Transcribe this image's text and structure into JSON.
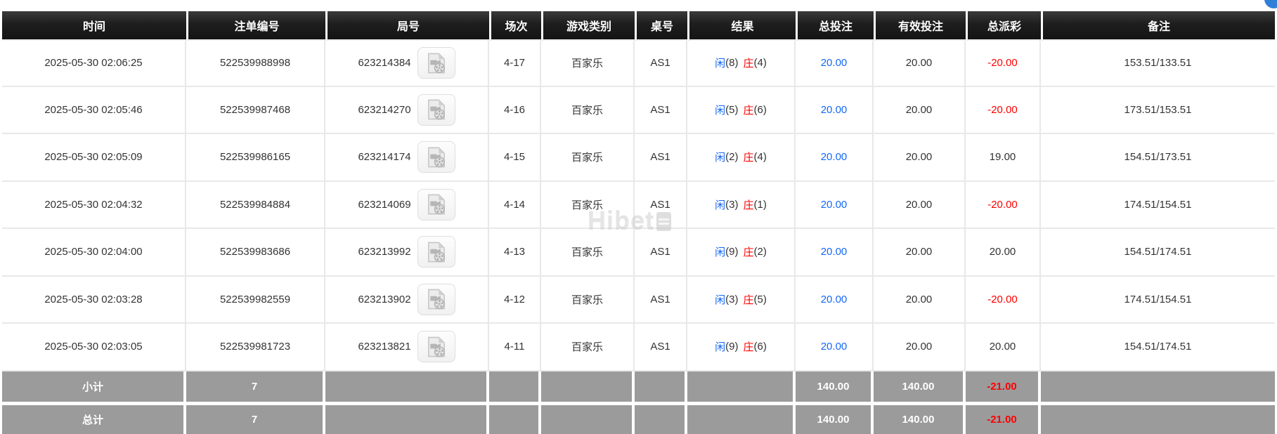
{
  "colors": {
    "header_black": "#1e1e1e",
    "accent_blue": "#1468fa",
    "negative_red": "#fe0000",
    "footer_gray": "#9b9b9b",
    "row_separator": "#e8e8e8"
  },
  "watermark": {
    "text": "Hibet"
  },
  "corner_widget": {
    "icon": "blue-circle-fragment"
  },
  "table": {
    "video_icon": "video-replay-icon",
    "columns": [
      {
        "key": "time",
        "label": "时间"
      },
      {
        "key": "bet-no",
        "label": "注单编号"
      },
      {
        "key": "round-no",
        "label": "局号"
      },
      {
        "key": "session",
        "label": "场次"
      },
      {
        "key": "game-type",
        "label": "游戏类别"
      },
      {
        "key": "table-no",
        "label": "桌号"
      },
      {
        "key": "result",
        "label": "结果"
      },
      {
        "key": "total-bet",
        "label": "总投注"
      },
      {
        "key": "valid-bet",
        "label": "有效投注"
      },
      {
        "key": "payout",
        "label": "总派彩"
      },
      {
        "key": "remark",
        "label": "备注"
      }
    ],
    "rows": [
      {
        "time": "2025-05-30 02:06:25",
        "bet_no": "522539988998",
        "round_no": "623214384",
        "session": "4-17",
        "game_type": "百家乐",
        "table_no": "AS1",
        "result": {
          "player_label": "闲",
          "player_value": "(8)",
          "banker_label": "庄",
          "banker_value": "(4)"
        },
        "total_bet": "20.00",
        "valid_bet": "20.00",
        "payout": "-20.00",
        "remark": "153.51/133.51"
      },
      {
        "time": "2025-05-30 02:05:46",
        "bet_no": "522539987468",
        "round_no": "623214270",
        "session": "4-16",
        "game_type": "百家乐",
        "table_no": "AS1",
        "result": {
          "player_label": "闲",
          "player_value": "(5)",
          "banker_label": "庄",
          "banker_value": "(6)"
        },
        "total_bet": "20.00",
        "valid_bet": "20.00",
        "payout": "-20.00",
        "remark": "173.51/153.51"
      },
      {
        "time": "2025-05-30 02:05:09",
        "bet_no": "522539986165",
        "round_no": "623214174",
        "session": "4-15",
        "game_type": "百家乐",
        "table_no": "AS1",
        "result": {
          "player_label": "闲",
          "player_value": "(2)",
          "banker_label": "庄",
          "banker_value": "(4)"
        },
        "total_bet": "20.00",
        "valid_bet": "20.00",
        "payout": "19.00",
        "remark": "154.51/173.51"
      },
      {
        "time": "2025-05-30 02:04:32",
        "bet_no": "522539984884",
        "round_no": "623214069",
        "session": "4-14",
        "game_type": "百家乐",
        "table_no": "AS1",
        "result": {
          "player_label": "闲",
          "player_value": "(3)",
          "banker_label": "庄",
          "banker_value": "(1)"
        },
        "total_bet": "20.00",
        "valid_bet": "20.00",
        "payout": "-20.00",
        "remark": "174.51/154.51"
      },
      {
        "time": "2025-05-30 02:04:00",
        "bet_no": "522539983686",
        "round_no": "623213992",
        "session": "4-13",
        "game_type": "百家乐",
        "table_no": "AS1",
        "result": {
          "player_label": "闲",
          "player_value": "(9)",
          "banker_label": "庄",
          "banker_value": "(2)"
        },
        "total_bet": "20.00",
        "valid_bet": "20.00",
        "payout": "20.00",
        "remark": "154.51/174.51"
      },
      {
        "time": "2025-05-30 02:03:28",
        "bet_no": "522539982559",
        "round_no": "623213902",
        "session": "4-12",
        "game_type": "百家乐",
        "table_no": "AS1",
        "result": {
          "player_label": "闲",
          "player_value": "(3)",
          "banker_label": "庄",
          "banker_value": "(5)"
        },
        "total_bet": "20.00",
        "valid_bet": "20.00",
        "payout": "-20.00",
        "remark": "174.51/154.51"
      },
      {
        "time": "2025-05-30 02:03:05",
        "bet_no": "522539981723",
        "round_no": "623213821",
        "session": "4-11",
        "game_type": "百家乐",
        "table_no": "AS1",
        "result": {
          "player_label": "闲",
          "player_value": "(9)",
          "banker_label": "庄",
          "banker_value": "(6)"
        },
        "total_bet": "20.00",
        "valid_bet": "20.00",
        "payout": "20.00",
        "remark": "154.51/174.51"
      }
    ],
    "footer": [
      {
        "key": "subtotal",
        "label": "小计",
        "count": "7",
        "total_bet": "140.00",
        "valid_bet": "140.00",
        "payout": "-21.00"
      },
      {
        "key": "total",
        "label": "总计",
        "count": "7",
        "total_bet": "140.00",
        "valid_bet": "140.00",
        "payout": "-21.00"
      }
    ]
  }
}
